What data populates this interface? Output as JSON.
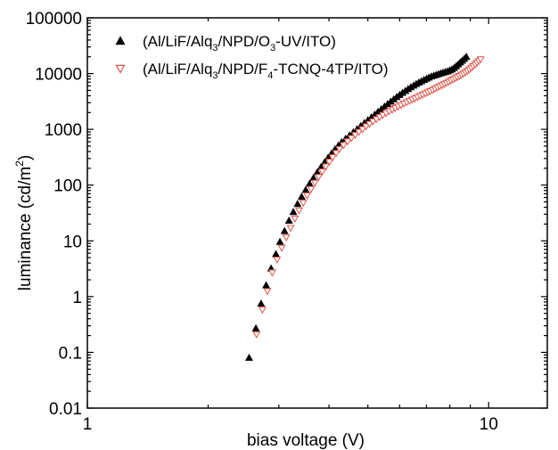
{
  "chart_data": {
    "type": "scatter",
    "title": "",
    "xlabel": "bias voltage (V)",
    "ylabel": "luminance (cd/m²)",
    "ylabel_parts": {
      "base": "luminance (cd/m",
      "sup": "2",
      "end": ")"
    },
    "x_scale": "log",
    "y_scale": "log",
    "xlim": [
      1,
      14
    ],
    "ylim": [
      0.01,
      100000
    ],
    "x_ticks": [
      {
        "value": 1,
        "label": "1"
      },
      {
        "value": 10,
        "label": "10"
      }
    ],
    "y_ticks": [
      {
        "value": 0.01,
        "label": "0.01"
      },
      {
        "value": 0.1,
        "label": "0.1"
      },
      {
        "value": 1,
        "label": "1"
      },
      {
        "value": 10,
        "label": "10"
      },
      {
        "value": 100,
        "label": "100"
      },
      {
        "value": 1000,
        "label": "1000"
      },
      {
        "value": 10000,
        "label": "10000"
      },
      {
        "value": 100000,
        "label": "100000"
      }
    ],
    "grid": false,
    "legend_position": "top-left",
    "series": [
      {
        "name": "(Al/LiF/Alq3/NPD/O3-UV/ITO)",
        "name_parts": [
          {
            "t": "(Al/LiF/Alq",
            "sub": false
          },
          {
            "t": "3",
            "sub": true
          },
          {
            "t": "/NPD/O",
            "sub": false
          },
          {
            "t": "3",
            "sub": true
          },
          {
            "t": "-UV/ITO)",
            "sub": false
          }
        ],
        "marker": "triangle-up",
        "color": "#000000",
        "fill": "#000000",
        "points": [
          [
            2.53,
            0.08
          ],
          [
            2.63,
            0.27
          ],
          [
            2.71,
            0.75
          ],
          [
            2.79,
            1.6
          ],
          [
            2.87,
            3.2
          ],
          [
            2.95,
            5.8
          ],
          [
            3.02,
            9.6
          ],
          [
            3.1,
            15
          ],
          [
            3.18,
            23
          ],
          [
            3.26,
            33
          ],
          [
            3.34,
            46
          ],
          [
            3.42,
            62
          ],
          [
            3.5,
            82
          ],
          [
            3.58,
            106
          ],
          [
            3.66,
            135
          ],
          [
            3.74,
            170
          ],
          [
            3.82,
            210
          ],
          [
            3.9,
            257
          ],
          [
            3.98,
            310
          ],
          [
            4.06,
            370
          ],
          [
            4.14,
            437
          ],
          [
            4.22,
            510
          ],
          [
            4.3,
            590
          ],
          [
            4.4,
            680
          ],
          [
            4.5,
            780
          ],
          [
            4.6,
            890
          ],
          [
            4.7,
            1010
          ],
          [
            4.8,
            1150
          ],
          [
            4.9,
            1300
          ],
          [
            5.0,
            1460
          ],
          [
            5.1,
            1640
          ],
          [
            5.2,
            1840
          ],
          [
            5.3,
            2060
          ],
          [
            5.4,
            2300
          ],
          [
            5.5,
            2560
          ],
          [
            5.6,
            2840
          ],
          [
            5.7,
            3140
          ],
          [
            5.8,
            3460
          ],
          [
            5.9,
            3800
          ],
          [
            6.0,
            4150
          ],
          [
            6.1,
            4520
          ],
          [
            6.2,
            4900
          ],
          [
            6.3,
            5300
          ],
          [
            6.4,
            5700
          ],
          [
            6.5,
            6100
          ],
          [
            6.6,
            6500
          ],
          [
            6.7,
            6900
          ],
          [
            6.8,
            7300
          ],
          [
            6.9,
            7700
          ],
          [
            7.0,
            8100
          ],
          [
            7.1,
            8500
          ],
          [
            7.2,
            8900
          ],
          [
            7.3,
            9200
          ],
          [
            7.4,
            9500
          ],
          [
            7.5,
            9800
          ],
          [
            7.6,
            10100
          ],
          [
            7.7,
            10400
          ],
          [
            7.8,
            10700
          ],
          [
            7.9,
            11000
          ],
          [
            8.0,
            11400
          ],
          [
            8.1,
            11900
          ],
          [
            8.2,
            12600
          ],
          [
            8.3,
            13600
          ],
          [
            8.4,
            14700
          ],
          [
            8.5,
            15900
          ],
          [
            8.6,
            17100
          ],
          [
            8.7,
            18500
          ],
          [
            8.8,
            20000
          ]
        ]
      },
      {
        "name": "(Al/LiF/Alq3/NPD/F4-TCNQ-4TP/ITO)",
        "name_parts": [
          {
            "t": "(Al/LiF/Alq",
            "sub": false
          },
          {
            "t": "3",
            "sub": true
          },
          {
            "t": "/NPD/F",
            "sub": false
          },
          {
            "t": "4",
            "sub": true
          },
          {
            "t": "-TCNQ-4TP/ITO)",
            "sub": false
          }
        ],
        "marker": "triangle-down",
        "color": "#e0544a",
        "fill": "none",
        "points": [
          [
            2.64,
            0.21
          ],
          [
            2.73,
            0.58
          ],
          [
            2.81,
            1.25
          ],
          [
            2.89,
            2.7
          ],
          [
            2.97,
            4.6
          ],
          [
            3.05,
            7.5
          ],
          [
            3.13,
            11.5
          ],
          [
            3.21,
            17
          ],
          [
            3.29,
            25
          ],
          [
            3.37,
            35
          ],
          [
            3.45,
            48
          ],
          [
            3.53,
            65
          ],
          [
            3.61,
            85
          ],
          [
            3.69,
            110
          ],
          [
            3.77,
            140
          ],
          [
            3.85,
            175
          ],
          [
            3.93,
            215
          ],
          [
            4.01,
            262
          ],
          [
            4.09,
            315
          ],
          [
            4.17,
            375
          ],
          [
            4.25,
            442
          ],
          [
            4.35,
            520
          ],
          [
            4.45,
            605
          ],
          [
            4.55,
            695
          ],
          [
            4.65,
            790
          ],
          [
            4.75,
            895
          ],
          [
            4.85,
            1005
          ],
          [
            4.95,
            1125
          ],
          [
            5.05,
            1250
          ],
          [
            5.15,
            1380
          ],
          [
            5.25,
            1520
          ],
          [
            5.35,
            1660
          ],
          [
            5.45,
            1800
          ],
          [
            5.55,
            1950
          ],
          [
            5.65,
            2100
          ],
          [
            5.75,
            2250
          ],
          [
            5.85,
            2400
          ],
          [
            5.95,
            2560
          ],
          [
            6.05,
            2720
          ],
          [
            6.15,
            2880
          ],
          [
            6.25,
            3050
          ],
          [
            6.35,
            3220
          ],
          [
            6.45,
            3400
          ],
          [
            6.55,
            3580
          ],
          [
            6.65,
            3770
          ],
          [
            6.75,
            3960
          ],
          [
            6.85,
            4160
          ],
          [
            6.95,
            4370
          ],
          [
            7.05,
            4590
          ],
          [
            7.15,
            4820
          ],
          [
            7.25,
            5060
          ],
          [
            7.35,
            5320
          ],
          [
            7.45,
            5590
          ],
          [
            7.55,
            5870
          ],
          [
            7.65,
            6160
          ],
          [
            7.75,
            6460
          ],
          [
            7.85,
            6780
          ],
          [
            7.95,
            7110
          ],
          [
            8.05,
            7460
          ],
          [
            8.15,
            7820
          ],
          [
            8.25,
            8200
          ],
          [
            8.35,
            8600
          ],
          [
            8.45,
            9020
          ],
          [
            8.55,
            9470
          ],
          [
            8.65,
            9950
          ],
          [
            8.75,
            10500
          ],
          [
            8.85,
            11100
          ],
          [
            8.95,
            11800
          ],
          [
            9.05,
            12600
          ],
          [
            9.15,
            13500
          ],
          [
            9.25,
            14500
          ],
          [
            9.35,
            15600
          ],
          [
            9.45,
            16800
          ],
          [
            9.55,
            18000
          ]
        ]
      }
    ]
  }
}
